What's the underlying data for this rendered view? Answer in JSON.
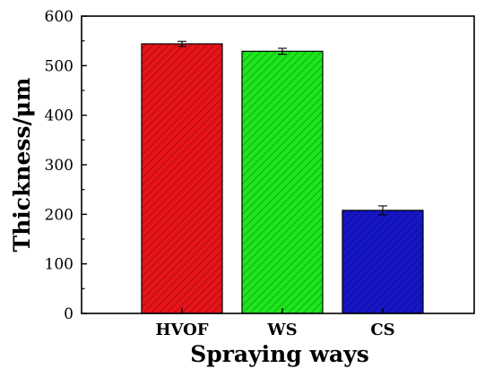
{
  "chart_data": {
    "type": "bar",
    "categories": [
      "HVOF",
      "WS",
      "CS"
    ],
    "values": [
      544,
      529,
      208
    ],
    "errors": [
      5,
      6,
      9
    ],
    "colors": [
      "#e8141a",
      "#1ee61e",
      "#1616c8"
    ],
    "xlabel": "Spraying ways",
    "ylabel": "Thickness/μm",
    "ylim": [
      0,
      600
    ],
    "yticks": [
      "0",
      "100",
      "200",
      "300",
      "400",
      "500",
      "600"
    ],
    "grid": false,
    "pattern": "diagonal-hatch"
  }
}
